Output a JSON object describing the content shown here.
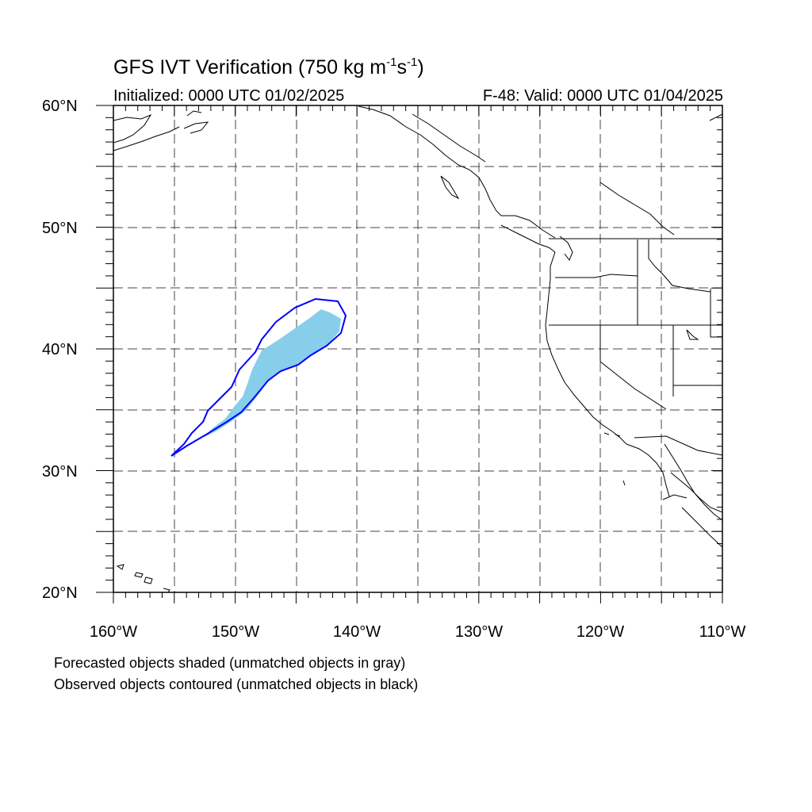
{
  "title": {
    "prefix": "GFS IVT Verification (750 kg m",
    "exp1": "-1",
    "mid": "s",
    "exp2": "-1",
    "suffix": ")"
  },
  "initialized": "Initialized: 0000 UTC 01/02/2025",
  "valid": "F-48: Valid: 0000 UTC 01/04/2025",
  "lat_labels": [
    "60°N",
    "50°N",
    "40°N",
    "30°N",
    "20°N"
  ],
  "lon_labels": [
    "160°W",
    "150°W",
    "140°W",
    "130°W",
    "120°W",
    "110°W"
  ],
  "legend": {
    "line1": "Forecasted objects shaded (unmatched objects in gray)",
    "line2": "Observed objects contoured (unmatched objects in black)"
  },
  "colors": {
    "forecast_fill": "#87ceeb",
    "observed_contour": "#0000ff",
    "coastline": "#000000",
    "grid": "#444444"
  },
  "map": {
    "lon_range": [
      -160,
      -110
    ],
    "lat_range": [
      20,
      60
    ],
    "grid": "dashed, every 5 degrees"
  }
}
